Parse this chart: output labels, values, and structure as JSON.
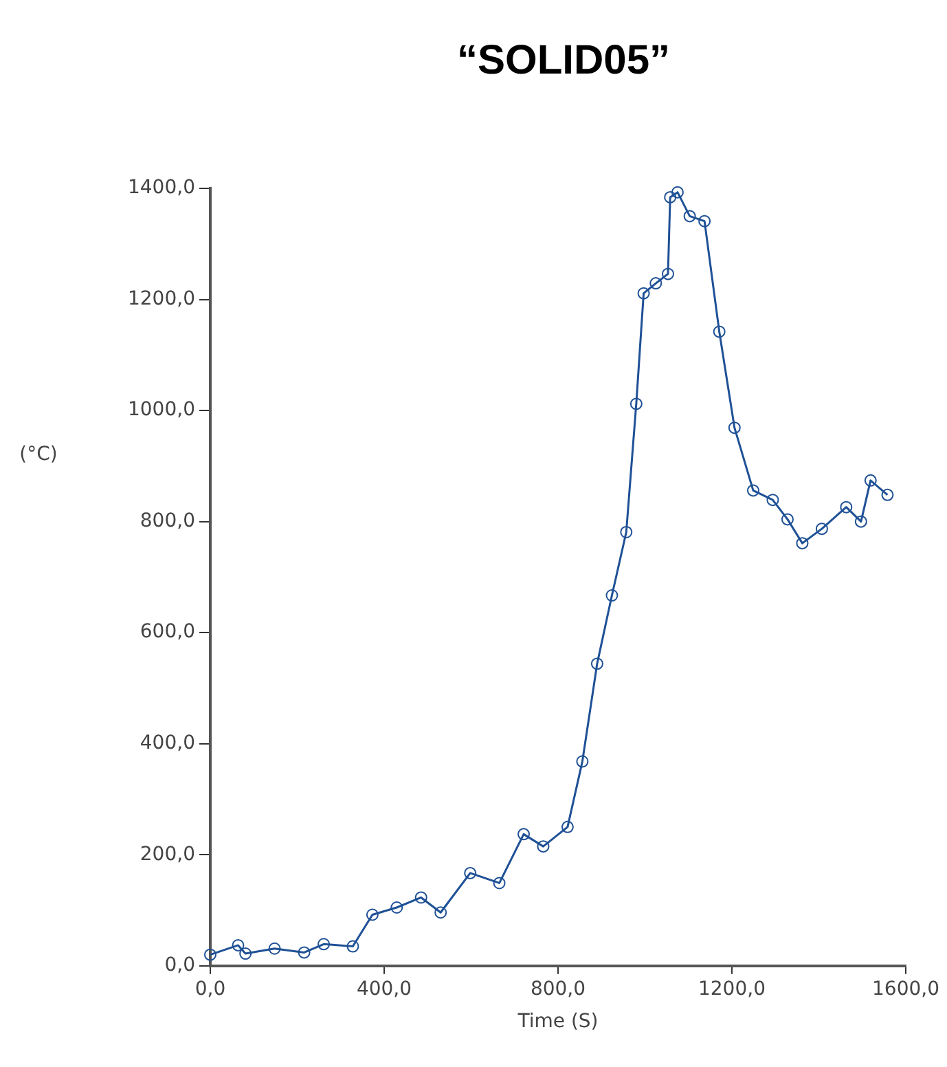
{
  "chart_data": {
    "type": "line",
    "title": "“SOLID05”",
    "xlabel": "Time (S)",
    "ylabel": "(°C)",
    "xlim": [
      0,
      1600
    ],
    "xticks": [
      {
        "value": 0,
        "label": "0,0"
      },
      {
        "value": 400,
        "label": "400,0"
      },
      {
        "value": 800,
        "label": "800,0"
      },
      {
        "value": 1200,
        "label": "1200,0"
      },
      {
        "value": 1600,
        "label": "1600,0"
      }
    ],
    "ylim": [
      0,
      1400
    ],
    "yticks": [
      {
        "value": 0,
        "label": "0,0"
      },
      {
        "value": 200,
        "label": "200,0"
      },
      {
        "value": 400,
        "label": "400,0"
      },
      {
        "value": 600,
        "label": "600,0"
      },
      {
        "value": 800,
        "label": "800,0"
      },
      {
        "value": 1000,
        "label": "1000,0"
      },
      {
        "value": 1200,
        "label": "1200,0"
      },
      {
        "value": 1400,
        "label": "1400,0"
      }
    ],
    "grid": false,
    "legend": false,
    "marker": "circle",
    "line_style": "solid",
    "x": [
      0,
      64,
      81,
      148,
      216,
      261,
      328,
      373,
      429,
      485,
      530,
      598,
      665,
      721,
      766,
      822,
      856,
      890,
      924,
      957,
      980,
      997,
      1025,
      1053,
      1058,
      1075,
      1103,
      1137,
      1171,
      1206,
      1249,
      1294,
      1328,
      1362,
      1407,
      1463,
      1497,
      1519,
      1558
    ],
    "series": [
      {
        "color": "#1f5196",
        "values": [
          20,
          37,
          22,
          31,
          24,
          39,
          35,
          92,
          105,
          123,
          96,
          167,
          149,
          237,
          215,
          250,
          368,
          544,
          667,
          781,
          1012,
          1211,
          1229,
          1246,
          1384,
          1393,
          1350,
          1341,
          1142,
          969,
          856,
          839,
          804,
          761,
          787,
          826,
          800,
          874,
          848
        ]
      }
    ]
  }
}
